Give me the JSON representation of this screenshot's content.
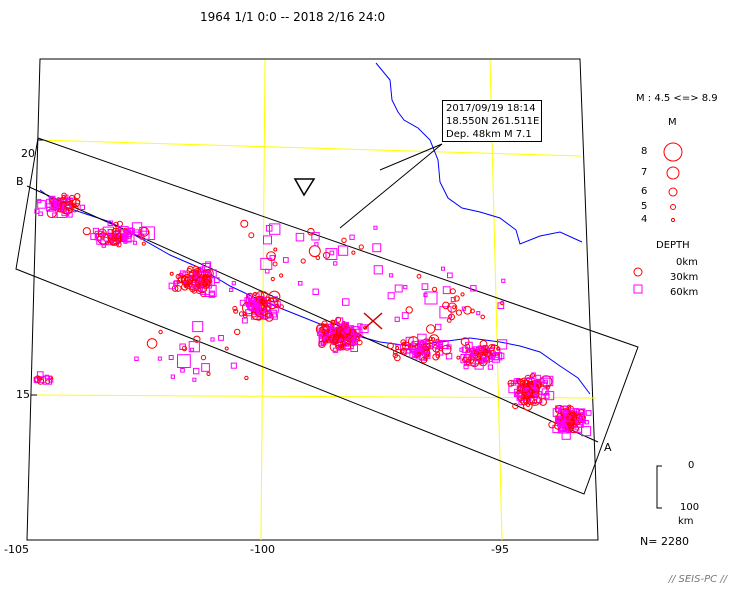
{
  "title": "1964 1/1 0:0 -- 2018 2/16 24:0",
  "axes": {
    "x_ticks": [
      "-105",
      "-100",
      "-95"
    ],
    "y_ticks": [
      "20",
      "15"
    ]
  },
  "section_labels": {
    "a": "A",
    "b": "B"
  },
  "annotation": {
    "line1": "2017/09/19 18:14",
    "line2": "18.550N  261.511E",
    "line3": "Dep. 48km   M 7.1"
  },
  "legend": {
    "mag_header": "M : 4.5 <=> 8.9",
    "mag_title": "M",
    "mag_items": [
      "8",
      "7",
      "6",
      "5",
      "4"
    ],
    "depth_title": "DEPTH",
    "depth_items": [
      "0km",
      "30km",
      "60km"
    ],
    "scale_top": "0",
    "scale_bottom": "100",
    "scale_unit": "km"
  },
  "count_label": "N= 2280",
  "credit": "// SEIS-PC //",
  "colors": {
    "grid": "#ffff00",
    "river": "#0000ff",
    "shallow": "#ff0000",
    "deep": "#ff00ff",
    "frame": "#000000"
  }
}
